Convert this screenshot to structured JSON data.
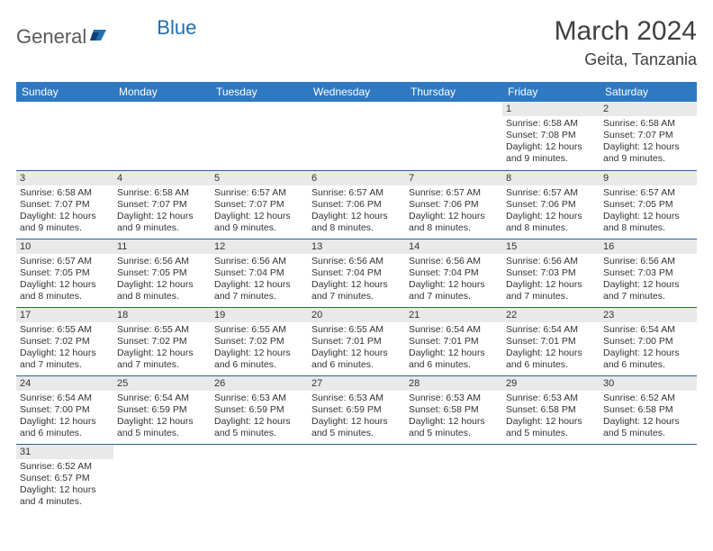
{
  "logo": {
    "text1": "General",
    "text2": "Blue"
  },
  "title": "March 2024",
  "location": "Geita, Tanzania",
  "colors": {
    "header_bg": "#2f79c2",
    "header_text": "#ffffff",
    "daynum_bg": "#e9e9e9",
    "border": "#2f5d9e",
    "logo_gray": "#5a5a5a",
    "logo_blue": "#1f6fb2",
    "body_text": "#333333"
  },
  "weekdays": [
    "Sunday",
    "Monday",
    "Tuesday",
    "Wednesday",
    "Thursday",
    "Friday",
    "Saturday"
  ],
  "weeks": [
    [
      null,
      null,
      null,
      null,
      null,
      {
        "n": "1",
        "sr": "Sunrise: 6:58 AM",
        "ss": "Sunset: 7:08 PM",
        "d1": "Daylight: 12 hours",
        "d2": "and 9 minutes."
      },
      {
        "n": "2",
        "sr": "Sunrise: 6:58 AM",
        "ss": "Sunset: 7:07 PM",
        "d1": "Daylight: 12 hours",
        "d2": "and 9 minutes."
      }
    ],
    [
      {
        "n": "3",
        "sr": "Sunrise: 6:58 AM",
        "ss": "Sunset: 7:07 PM",
        "d1": "Daylight: 12 hours",
        "d2": "and 9 minutes."
      },
      {
        "n": "4",
        "sr": "Sunrise: 6:58 AM",
        "ss": "Sunset: 7:07 PM",
        "d1": "Daylight: 12 hours",
        "d2": "and 9 minutes."
      },
      {
        "n": "5",
        "sr": "Sunrise: 6:57 AM",
        "ss": "Sunset: 7:07 PM",
        "d1": "Daylight: 12 hours",
        "d2": "and 9 minutes."
      },
      {
        "n": "6",
        "sr": "Sunrise: 6:57 AM",
        "ss": "Sunset: 7:06 PM",
        "d1": "Daylight: 12 hours",
        "d2": "and 8 minutes."
      },
      {
        "n": "7",
        "sr": "Sunrise: 6:57 AM",
        "ss": "Sunset: 7:06 PM",
        "d1": "Daylight: 12 hours",
        "d2": "and 8 minutes."
      },
      {
        "n": "8",
        "sr": "Sunrise: 6:57 AM",
        "ss": "Sunset: 7:06 PM",
        "d1": "Daylight: 12 hours",
        "d2": "and 8 minutes."
      },
      {
        "n": "9",
        "sr": "Sunrise: 6:57 AM",
        "ss": "Sunset: 7:05 PM",
        "d1": "Daylight: 12 hours",
        "d2": "and 8 minutes."
      }
    ],
    [
      {
        "n": "10",
        "sr": "Sunrise: 6:57 AM",
        "ss": "Sunset: 7:05 PM",
        "d1": "Daylight: 12 hours",
        "d2": "and 8 minutes."
      },
      {
        "n": "11",
        "sr": "Sunrise: 6:56 AM",
        "ss": "Sunset: 7:05 PM",
        "d1": "Daylight: 12 hours",
        "d2": "and 8 minutes."
      },
      {
        "n": "12",
        "sr": "Sunrise: 6:56 AM",
        "ss": "Sunset: 7:04 PM",
        "d1": "Daylight: 12 hours",
        "d2": "and 7 minutes."
      },
      {
        "n": "13",
        "sr": "Sunrise: 6:56 AM",
        "ss": "Sunset: 7:04 PM",
        "d1": "Daylight: 12 hours",
        "d2": "and 7 minutes."
      },
      {
        "n": "14",
        "sr": "Sunrise: 6:56 AM",
        "ss": "Sunset: 7:04 PM",
        "d1": "Daylight: 12 hours",
        "d2": "and 7 minutes."
      },
      {
        "n": "15",
        "sr": "Sunrise: 6:56 AM",
        "ss": "Sunset: 7:03 PM",
        "d1": "Daylight: 12 hours",
        "d2": "and 7 minutes."
      },
      {
        "n": "16",
        "sr": "Sunrise: 6:56 AM",
        "ss": "Sunset: 7:03 PM",
        "d1": "Daylight: 12 hours",
        "d2": "and 7 minutes."
      }
    ],
    [
      {
        "n": "17",
        "sr": "Sunrise: 6:55 AM",
        "ss": "Sunset: 7:02 PM",
        "d1": "Daylight: 12 hours",
        "d2": "and 7 minutes."
      },
      {
        "n": "18",
        "sr": "Sunrise: 6:55 AM",
        "ss": "Sunset: 7:02 PM",
        "d1": "Daylight: 12 hours",
        "d2": "and 7 minutes."
      },
      {
        "n": "19",
        "sr": "Sunrise: 6:55 AM",
        "ss": "Sunset: 7:02 PM",
        "d1": "Daylight: 12 hours",
        "d2": "and 6 minutes."
      },
      {
        "n": "20",
        "sr": "Sunrise: 6:55 AM",
        "ss": "Sunset: 7:01 PM",
        "d1": "Daylight: 12 hours",
        "d2": "and 6 minutes."
      },
      {
        "n": "21",
        "sr": "Sunrise: 6:54 AM",
        "ss": "Sunset: 7:01 PM",
        "d1": "Daylight: 12 hours",
        "d2": "and 6 minutes."
      },
      {
        "n": "22",
        "sr": "Sunrise: 6:54 AM",
        "ss": "Sunset: 7:01 PM",
        "d1": "Daylight: 12 hours",
        "d2": "and 6 minutes."
      },
      {
        "n": "23",
        "sr": "Sunrise: 6:54 AM",
        "ss": "Sunset: 7:00 PM",
        "d1": "Daylight: 12 hours",
        "d2": "and 6 minutes."
      }
    ],
    [
      {
        "n": "24",
        "sr": "Sunrise: 6:54 AM",
        "ss": "Sunset: 7:00 PM",
        "d1": "Daylight: 12 hours",
        "d2": "and 6 minutes."
      },
      {
        "n": "25",
        "sr": "Sunrise: 6:54 AM",
        "ss": "Sunset: 6:59 PM",
        "d1": "Daylight: 12 hours",
        "d2": "and 5 minutes."
      },
      {
        "n": "26",
        "sr": "Sunrise: 6:53 AM",
        "ss": "Sunset: 6:59 PM",
        "d1": "Daylight: 12 hours",
        "d2": "and 5 minutes."
      },
      {
        "n": "27",
        "sr": "Sunrise: 6:53 AM",
        "ss": "Sunset: 6:59 PM",
        "d1": "Daylight: 12 hours",
        "d2": "and 5 minutes."
      },
      {
        "n": "28",
        "sr": "Sunrise: 6:53 AM",
        "ss": "Sunset: 6:58 PM",
        "d1": "Daylight: 12 hours",
        "d2": "and 5 minutes."
      },
      {
        "n": "29",
        "sr": "Sunrise: 6:53 AM",
        "ss": "Sunset: 6:58 PM",
        "d1": "Daylight: 12 hours",
        "d2": "and 5 minutes."
      },
      {
        "n": "30",
        "sr": "Sunrise: 6:52 AM",
        "ss": "Sunset: 6:58 PM",
        "d1": "Daylight: 12 hours",
        "d2": "and 5 minutes."
      }
    ],
    [
      {
        "n": "31",
        "sr": "Sunrise: 6:52 AM",
        "ss": "Sunset: 6:57 PM",
        "d1": "Daylight: 12 hours",
        "d2": "and 4 minutes."
      },
      null,
      null,
      null,
      null,
      null,
      null
    ]
  ]
}
